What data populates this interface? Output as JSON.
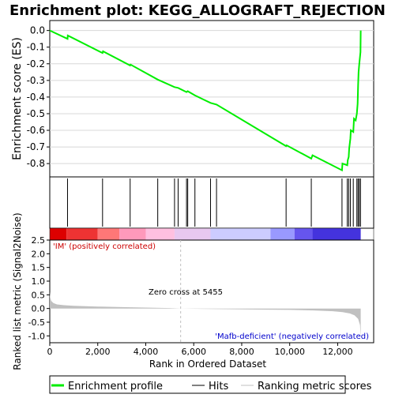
{
  "colors": {
    "es_line": "#00ee00",
    "hits": "#000000",
    "metric_fill": "#c0c0c0",
    "pos_label": "#cc0000",
    "neg_label": "#0000cc",
    "zero_line": "#c0c0c0"
  },
  "chart_data": [
    {
      "type": "line",
      "title": "Enrichment plot: KEGG_ALLOGRAFT_REJECTION",
      "ylabel": "Enrichment score (ES)",
      "xlim": [
        0,
        13500
      ],
      "ylim": [
        -0.88,
        0.06
      ],
      "y_ticks": [
        0.0,
        -0.1,
        -0.2,
        -0.3,
        -0.4,
        -0.5,
        -0.6,
        -0.7,
        -0.8
      ],
      "y_tick_labels": [
        "0.0",
        "-0.1",
        "-0.2",
        "-0.3",
        "-0.4",
        "-0.5",
        "-0.6",
        "-0.7",
        "-0.8"
      ],
      "grid": true,
      "series": [
        {
          "name": "Enrichment profile",
          "x": [
            0,
            740,
            750,
            2200,
            2220,
            3350,
            3370,
            4500,
            5200,
            5350,
            5700,
            5750,
            6050,
            6700,
            6950,
            9850,
            9870,
            10900,
            10950,
            12180,
            12200,
            12400,
            12420,
            12460,
            12480,
            12530,
            12550,
            12650,
            12680,
            12750,
            12800,
            12830,
            12850,
            12870,
            12900,
            12950,
            12960
          ],
          "y": [
            0.0,
            -0.05,
            -0.03,
            -0.135,
            -0.125,
            -0.21,
            -0.205,
            -0.295,
            -0.34,
            -0.345,
            -0.37,
            -0.365,
            -0.39,
            -0.435,
            -0.445,
            -0.695,
            -0.69,
            -0.77,
            -0.75,
            -0.84,
            -0.8,
            -0.81,
            -0.78,
            -0.76,
            -0.71,
            -0.65,
            -0.6,
            -0.61,
            -0.53,
            -0.54,
            -0.5,
            -0.44,
            -0.33,
            -0.25,
            -0.2,
            -0.13,
            0.0
          ]
        }
      ]
    },
    {
      "type": "scatter",
      "series": [
        {
          "name": "Hits",
          "x": [
            740,
            2200,
            3350,
            4500,
            5200,
            5350,
            5700,
            5750,
            6050,
            6700,
            6950,
            9850,
            10900,
            12180,
            12400,
            12460,
            12530,
            12650,
            12800,
            12850,
            12900,
            12950
          ]
        }
      ]
    },
    {
      "type": "area",
      "ylabel": "Ranked list metric (Signal2Noise)",
      "xlabel": "Rank in Ordered Dataset",
      "xlim": [
        0,
        13500
      ],
      "ylim": [
        -1.25,
        2.5
      ],
      "x_ticks": [
        0,
        2000,
        4000,
        6000,
        8000,
        10000,
        12000
      ],
      "x_tick_labels": [
        "0",
        "2,000",
        "4,000",
        "6,000",
        "8,000",
        "10,000",
        "12,000"
      ],
      "y_ticks": [
        2.5,
        2.0,
        1.5,
        1.0,
        0.5,
        0.0,
        -0.5,
        -1.0
      ],
      "y_tick_labels": [
        "2.5",
        "2.0",
        "1.5",
        "1.0",
        "0.5",
        "0.0",
        "-0.5",
        "-1.0"
      ],
      "series": [
        {
          "name": "Ranking metric scores",
          "x": [
            0,
            20,
            60,
            150,
            300,
            600,
            1000,
            2000,
            3000,
            4000,
            5000,
            5455,
            6000,
            7000,
            8000,
            9000,
            10000,
            11000,
            11800,
            12200,
            12500,
            12700,
            12850,
            12930,
            12960
          ],
          "y": [
            0.62,
            0.4,
            0.28,
            0.2,
            0.15,
            0.12,
            0.1,
            0.07,
            0.05,
            0.035,
            0.015,
            0.0,
            -0.01,
            -0.02,
            -0.03,
            -0.04,
            -0.05,
            -0.07,
            -0.1,
            -0.13,
            -0.18,
            -0.25,
            -0.38,
            -0.6,
            -1.05
          ]
        }
      ],
      "annotations": {
        "zero_cross": "Zero cross at 5455",
        "positive": "'IM' (positively correlated)",
        "negative": "'Mafb-deficient' (negatively correlated)"
      },
      "zero_cross_rank": 5455
    },
    {
      "type": "heatmap",
      "colors": [
        "#dd0000",
        "#ee3333",
        "#ff7777",
        "#ff99bb",
        "#ffc0e0",
        "#e8c8f0",
        "#ccccff",
        "#9999ff",
        "#6655ee",
        "#4433dd"
      ],
      "breaks": [
        0,
        700,
        2000,
        2900,
        4000,
        5200,
        6700,
        9200,
        10200,
        10950,
        12960
      ]
    }
  ],
  "legend": {
    "items": [
      {
        "label": "Enrichment profile",
        "kind": "line",
        "color": "#00ee00"
      },
      {
        "label": "Hits",
        "kind": "line",
        "color": "#000000"
      },
      {
        "label": "Ranking metric scores",
        "kind": "line",
        "color": "#c0c0c0"
      }
    ]
  }
}
